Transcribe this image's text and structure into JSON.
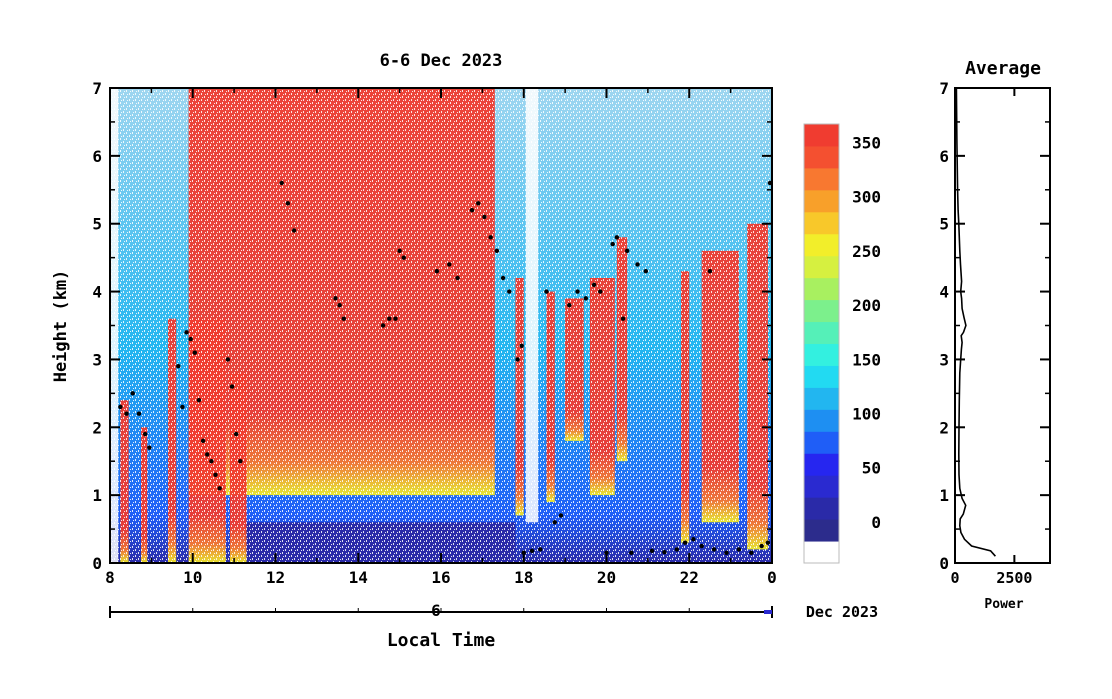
{
  "chart_data": [
    {
      "type": "heatmap",
      "title": "6-6 Dec 2023",
      "xlabel": "Local Time",
      "ylabel": "Height (km)",
      "x_ticks": [
        "8",
        "10",
        "12",
        "14",
        "16",
        "18",
        "20",
        "22",
        "0"
      ],
      "x_range_hours": [
        8,
        24
      ],
      "date_axis_label": "6",
      "date_axis_month": "Dec 2023",
      "y_ticks": [
        "0",
        "1",
        "2",
        "3",
        "4",
        "5",
        "6",
        "7"
      ],
      "ylim": [
        0,
        7
      ],
      "colorbar": {
        "ticks": [
          "0",
          "50",
          "100",
          "150",
          "200",
          "250",
          "300",
          "350"
        ],
        "range": [
          -25,
          380
        ],
        "colors": [
          "#ffffff",
          "#2c2c8c",
          "#2a2aa8",
          "#2a2ad0",
          "#2626f0",
          "#1f5ef7",
          "#1e8ff2",
          "#22b6f0",
          "#22daf2",
          "#33f0e0",
          "#55f0b8",
          "#7cf08c",
          "#a8f060",
          "#d6f040",
          "#f2ee2a",
          "#f8c82a",
          "#f8a02a",
          "#f87830",
          "#f45030",
          "#f03c30"
        ]
      },
      "cloud_base_points": [
        [
          8.25,
          2.3
        ],
        [
          8.4,
          2.2
        ],
        [
          8.55,
          2.5
        ],
        [
          8.7,
          2.2
        ],
        [
          8.85,
          1.9
        ],
        [
          8.95,
          1.7
        ],
        [
          9.65,
          2.9
        ],
        [
          9.75,
          2.3
        ],
        [
          9.85,
          3.4
        ],
        [
          9.95,
          3.3
        ],
        [
          10.05,
          3.1
        ],
        [
          10.15,
          2.4
        ],
        [
          10.25,
          1.8
        ],
        [
          10.35,
          1.6
        ],
        [
          10.45,
          1.5
        ],
        [
          10.55,
          1.3
        ],
        [
          10.65,
          1.1
        ],
        [
          10.85,
          3.0
        ],
        [
          10.95,
          2.6
        ],
        [
          11.05,
          1.9
        ],
        [
          11.15,
          1.5
        ],
        [
          12.15,
          5.6
        ],
        [
          12.3,
          5.3
        ],
        [
          12.45,
          4.9
        ],
        [
          13.45,
          3.9
        ],
        [
          13.55,
          3.8
        ],
        [
          13.65,
          3.6
        ],
        [
          14.6,
          3.5
        ],
        [
          14.75,
          3.6
        ],
        [
          14.9,
          3.6
        ],
        [
          15.0,
          4.6
        ],
        [
          15.1,
          4.5
        ],
        [
          15.9,
          4.3
        ],
        [
          16.2,
          4.4
        ],
        [
          16.4,
          4.2
        ],
        [
          16.75,
          5.2
        ],
        [
          16.9,
          5.3
        ],
        [
          17.05,
          5.1
        ],
        [
          17.2,
          4.8
        ],
        [
          17.35,
          4.6
        ],
        [
          17.5,
          4.2
        ],
        [
          17.65,
          4.0
        ],
        [
          17.85,
          3.0
        ],
        [
          17.95,
          3.2
        ],
        [
          18.0,
          0.15
        ],
        [
          18.2,
          0.18
        ],
        [
          18.4,
          0.2
        ],
        [
          18.55,
          4.0
        ],
        [
          18.75,
          0.6
        ],
        [
          18.9,
          0.7
        ],
        [
          19.1,
          3.8
        ],
        [
          19.3,
          4.0
        ],
        [
          19.5,
          3.9
        ],
        [
          19.7,
          4.1
        ],
        [
          19.85,
          4.0
        ],
        [
          20.0,
          0.15
        ],
        [
          20.15,
          4.7
        ],
        [
          20.25,
          4.8
        ],
        [
          20.4,
          3.6
        ],
        [
          20.5,
          4.6
        ],
        [
          20.6,
          0.15
        ],
        [
          20.75,
          4.4
        ],
        [
          20.95,
          4.3
        ],
        [
          21.1,
          0.18
        ],
        [
          21.4,
          0.16
        ],
        [
          21.7,
          0.2
        ],
        [
          21.9,
          0.3
        ],
        [
          22.1,
          0.35
        ],
        [
          22.3,
          0.25
        ],
        [
          22.5,
          4.3
        ],
        [
          22.6,
          0.2
        ],
        [
          22.9,
          0.15
        ],
        [
          23.2,
          0.2
        ],
        [
          23.5,
          0.15
        ],
        [
          23.75,
          0.25
        ],
        [
          23.9,
          0.3
        ],
        [
          23.95,
          5.6
        ]
      ]
    },
    {
      "type": "line",
      "title": "Average",
      "xlabel": "Power",
      "ylabel": "",
      "x_ticks": [
        "0",
        "2500"
      ],
      "xlim": [
        0,
        4000
      ],
      "y_ticks": [
        "0",
        "1",
        "2",
        "3",
        "4",
        "5",
        "6",
        "7"
      ],
      "ylim": [
        0,
        7
      ],
      "series": [
        {
          "x": [
            1700,
            1500,
            700,
            400,
            250,
            200,
            220,
            350,
            450,
            300,
            200,
            170,
            160,
            170,
            180,
            200,
            240,
            270,
            300,
            260,
            360,
            460,
            380,
            300,
            280,
            240,
            280,
            230,
            200,
            160,
            130,
            110,
            80,
            60
          ],
          "y": [
            0.1,
            0.18,
            0.25,
            0.35,
            0.45,
            0.55,
            0.65,
            0.72,
            0.85,
            0.95,
            1.1,
            1.3,
            1.6,
            2.0,
            2.4,
            2.8,
            3.0,
            3.15,
            3.25,
            3.35,
            3.4,
            3.5,
            3.62,
            3.75,
            3.9,
            4.0,
            4.15,
            4.4,
            4.6,
            5.0,
            5.2,
            5.5,
            6.2,
            7.0
          ]
        }
      ]
    }
  ]
}
